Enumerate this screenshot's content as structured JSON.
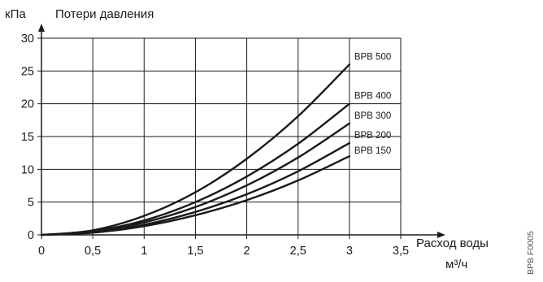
{
  "chart_data": {
    "type": "line",
    "ylabel_unit": "кПа",
    "ylabel": "Потери давления",
    "xlabel": "Расход воды",
    "xlabel_unit": "м³/ч",
    "side_code": "BPB F0005",
    "xlim": [
      0,
      3.5
    ],
    "ylim": [
      0,
      30
    ],
    "x_ticks": [
      0,
      0.5,
      1,
      1.5,
      2,
      2.5,
      3,
      3.5
    ],
    "x_tick_labels": [
      "0",
      "0,5",
      "1",
      "1,5",
      "2",
      "2,5",
      "3",
      "3,5"
    ],
    "y_ticks": [
      0,
      5,
      10,
      15,
      20,
      25,
      30
    ],
    "y_tick_labels": [
      "0",
      "5",
      "10",
      "15",
      "20",
      "25",
      "30"
    ],
    "grid": true,
    "series": [
      {
        "name": "BPB 500",
        "x": [
          0,
          0.5,
          1,
          1.5,
          2,
          2.5,
          3
        ],
        "values": [
          0,
          0.7,
          2.9,
          6.5,
          11.6,
          18.1,
          26.0
        ]
      },
      {
        "name": "BPB 400",
        "x": [
          0,
          0.5,
          1,
          1.5,
          2,
          2.5,
          3
        ],
        "values": [
          0,
          0.55,
          2.2,
          5.0,
          8.9,
          13.9,
          20.0
        ]
      },
      {
        "name": "BPB 300",
        "x": [
          0,
          0.5,
          1,
          1.5,
          2,
          2.5,
          3
        ],
        "values": [
          0,
          0.47,
          1.9,
          4.25,
          7.55,
          11.8,
          17.0
        ]
      },
      {
        "name": "BPB 200",
        "x": [
          0,
          0.5,
          1,
          1.5,
          2,
          2.5,
          3
        ],
        "values": [
          0,
          0.39,
          1.55,
          3.5,
          6.2,
          9.7,
          14.0
        ]
      },
      {
        "name": "BPB 150",
        "x": [
          0,
          0.5,
          1,
          1.5,
          2,
          2.5,
          3
        ],
        "values": [
          0,
          0.33,
          1.33,
          3.0,
          5.3,
          8.3,
          12.0
        ]
      }
    ]
  }
}
